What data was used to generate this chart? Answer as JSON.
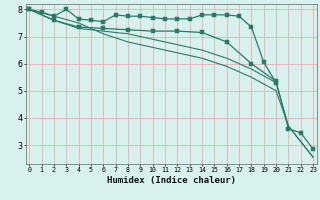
{
  "xlabel": "Humidex (Indice chaleur)",
  "x": [
    0,
    1,
    2,
    3,
    4,
    5,
    6,
    7,
    8,
    9,
    10,
    11,
    12,
    13,
    14,
    15,
    16,
    17,
    18,
    19,
    20,
    21,
    22,
    23
  ],
  "line1_x": [
    0,
    1,
    2,
    3,
    4,
    5,
    6,
    7,
    8,
    9,
    10,
    11,
    12,
    13,
    14,
    15,
    16,
    17,
    18,
    19,
    20
  ],
  "line1_y": [
    8.0,
    7.9,
    7.75,
    8.0,
    7.65,
    7.6,
    7.55,
    7.8,
    7.75,
    7.75,
    7.7,
    7.65,
    7.65,
    7.65,
    7.8,
    7.8,
    7.8,
    7.75,
    7.35,
    6.05,
    5.3
  ],
  "line2_x": [
    0,
    2,
    4,
    6,
    8,
    10,
    12,
    14,
    16,
    18,
    20,
    21,
    22,
    23
  ],
  "line2_y": [
    8.0,
    7.6,
    7.35,
    7.3,
    7.25,
    7.2,
    7.2,
    7.15,
    6.8,
    6.0,
    5.35,
    3.6,
    3.45,
    2.85
  ],
  "line3_x": [
    0,
    2,
    4,
    6,
    8,
    10,
    12,
    14,
    16,
    18,
    20,
    21,
    23
  ],
  "line3_y": [
    8.0,
    7.6,
    7.3,
    7.2,
    7.1,
    6.9,
    6.7,
    6.5,
    6.2,
    5.8,
    5.3,
    3.7,
    2.55
  ],
  "line4_x": [
    0,
    4,
    6,
    8,
    10,
    12,
    14,
    16,
    18,
    20,
    21,
    23
  ],
  "line4_y": [
    8.0,
    7.5,
    7.1,
    6.8,
    6.6,
    6.4,
    6.2,
    5.9,
    5.5,
    5.0,
    3.7,
    2.55
  ],
  "line_color": "#2a7a6a",
  "bg_color": "#d8f0ee",
  "grid_color": "#e8b0b0",
  "ylim": [
    2.3,
    8.2
  ],
  "yticks": [
    3,
    4,
    5,
    6,
    7,
    8
  ],
  "xlim": [
    -0.3,
    23.3
  ]
}
